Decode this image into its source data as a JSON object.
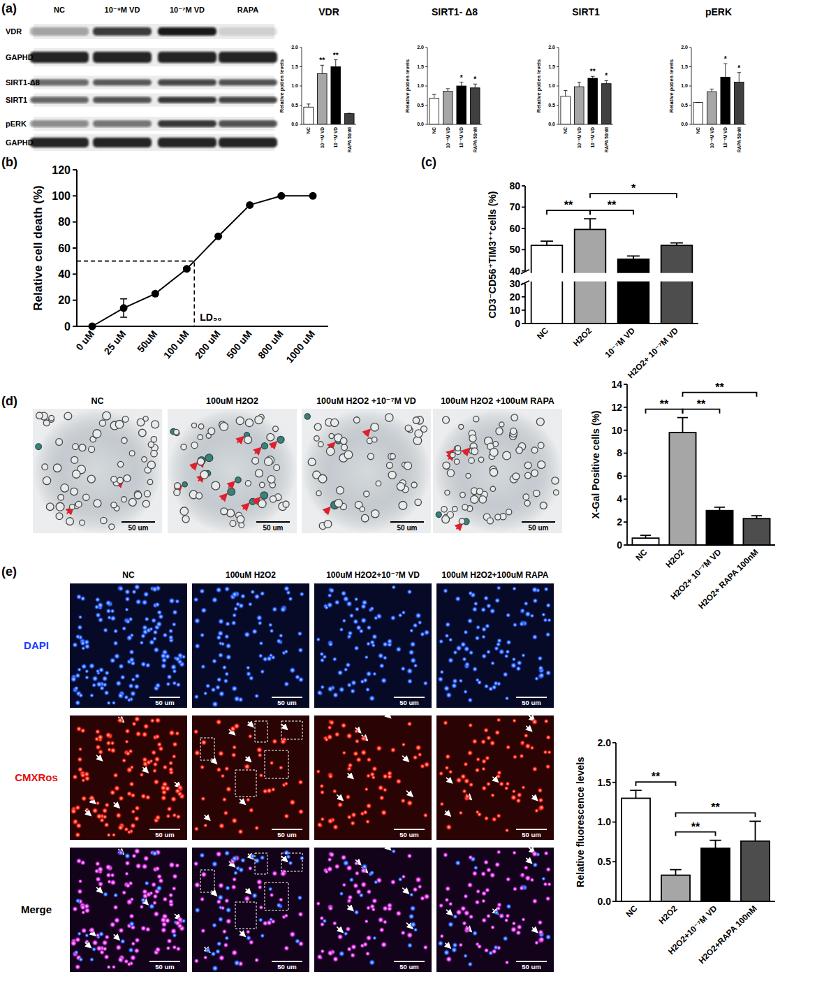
{
  "panel_labels": [
    "(a)",
    "(b)",
    "(c)",
    "(d)",
    "(e)"
  ],
  "blot": {
    "lanes": [
      "NC",
      "10⁻⁹M VD",
      "10⁻⁷M VD",
      "RAPA"
    ],
    "rows": [
      "VDR",
      "GAPHD",
      "SIRT1-Δ8",
      "SIRT1",
      "pERK",
      "GAPHD"
    ]
  },
  "micrographs_d": {
    "titles": [
      "NC",
      "100uM H2O2",
      "100uM H2O2 +10⁻⁷M VD",
      "100uM H2O2 +100uM RAPA"
    ],
    "scale_bar": "50 um"
  },
  "micrographs_e": {
    "titles": [
      "NC",
      "100uM H2O2",
      "100uM H2O2+10⁻⁷M VD",
      "100uM H2O2+100uM RAPA"
    ],
    "rows": [
      "DAPI",
      "CMXRos",
      "Merge"
    ],
    "scale_bar": "50 um"
  },
  "chart_data": [
    {
      "type": "bar",
      "title": "VDR",
      "y_label": "Relative potien levels",
      "categories": [
        "NC",
        "10⁻⁹M VD",
        "10⁻⁷M VD",
        "RAPA 50nM"
      ],
      "values": [
        0.45,
        1.32,
        1.5,
        0.28
      ],
      "errors": [
        0.08,
        0.22,
        0.18,
        0.01
      ],
      "colors": [
        "#ffffff",
        "#a6a6a6",
        "#000000",
        "#404040"
      ],
      "ylim": [
        0,
        2
      ],
      "yticks": [
        {
          "value": 0,
          "label": "0.0"
        },
        0.5,
        {
          "value": 1,
          "label": "1.0"
        },
        1.5,
        {
          "value": 2,
          "label": "2.0"
        }
      ],
      "stars": [
        null,
        "**",
        "**",
        null
      ]
    },
    {
      "type": "bar",
      "title": "SIRT1- Δ8",
      "y_label": "Relative potien levels",
      "categories": [
        "NC",
        "10⁻⁹M VD",
        "10⁻⁷M VD",
        "RAPA 50nM"
      ],
      "values": [
        0.68,
        0.86,
        1.0,
        0.95
      ],
      "errors": [
        0.1,
        0.07,
        0.1,
        0.1
      ],
      "colors": [
        "#ffffff",
        "#a6a6a6",
        "#000000",
        "#404040"
      ],
      "ylim": [
        0,
        2
      ],
      "yticks": [
        {
          "value": 0,
          "label": "0.0"
        },
        0.5,
        {
          "value": 1,
          "label": "1.0"
        },
        1.5,
        {
          "value": 2,
          "label": "2.0"
        }
      ],
      "stars": [
        null,
        null,
        "*",
        "*"
      ]
    },
    {
      "type": "bar",
      "title": "SIRT1",
      "y_label": "Relative potien levels",
      "categories": [
        "NC",
        "10⁻⁹M VD",
        "10⁻⁷M VD",
        "RAPA 50nM"
      ],
      "values": [
        0.73,
        0.98,
        1.2,
        1.06
      ],
      "errors": [
        0.15,
        0.12,
        0.05,
        0.08
      ],
      "colors": [
        "#ffffff",
        "#a6a6a6",
        "#000000",
        "#404040"
      ],
      "ylim": [
        0,
        2
      ],
      "yticks": [
        {
          "value": 0,
          "label": "0.0"
        },
        0.5,
        {
          "value": 1,
          "label": "1.0"
        },
        1.5,
        {
          "value": 2,
          "label": "2.0"
        }
      ],
      "stars": [
        null,
        null,
        "**",
        "*"
      ]
    },
    {
      "type": "bar",
      "title": "pERK",
      "y_label": "Relative potien levels",
      "categories": [
        "NC",
        "10⁻⁹M VD",
        "10⁻⁷M VD",
        "RAPA 50nM"
      ],
      "values": [
        0.57,
        0.85,
        1.23,
        1.1
      ],
      "errors": [
        0.0,
        0.07,
        0.35,
        0.25
      ],
      "colors": [
        "#ffffff",
        "#a6a6a6",
        "#000000",
        "#404040"
      ],
      "ylim": [
        0,
        2
      ],
      "yticks": [
        {
          "value": 0,
          "label": "0.0"
        },
        0.5,
        {
          "value": 1,
          "label": "1.0"
        },
        1.5,
        {
          "value": 2,
          "label": "2.0"
        }
      ],
      "stars": [
        null,
        null,
        "*",
        "*"
      ]
    },
    {
      "type": "line",
      "y_label": "Relative cell death (%)",
      "categories": [
        "0 uM",
        "25 uM",
        "50uM",
        "100 uM",
        "200 uM",
        "500 uM",
        "800 uM",
        "1000 uM"
      ],
      "values": [
        0,
        14,
        25,
        44,
        69,
        93,
        100,
        100
      ],
      "errors": [
        0,
        7,
        1,
        1,
        0,
        0,
        0,
        0
      ],
      "color": "#000000",
      "marker": "circle",
      "ylim": [
        0,
        120
      ],
      "yticks": [
        0,
        20,
        40,
        60,
        80,
        100,
        120
      ],
      "annotations": [
        {
          "text": "LD₅₀",
          "y": 50
        }
      ]
    },
    {
      "type": "bar",
      "y_label": "CD3⁻CD56⁺TIM3⁺⁺cells (%)",
      "categories": [
        "NC",
        "H2O2",
        "10⁻⁷M VD",
        "H2O2+ 10⁻⁷M VD"
      ],
      "values": [
        52,
        59.5,
        45.5,
        52
      ],
      "errors": [
        2,
        5,
        1.5,
        1.2
      ],
      "colors": [
        "#ffffff",
        "#a6a6a6",
        "#000000",
        "#4d4d4d"
      ],
      "ylim": [
        0,
        80
      ],
      "yticks": [
        0,
        10,
        20,
        30,
        40,
        50,
        60,
        70,
        80
      ],
      "axis_break": [
        30,
        40
      ],
      "significance": [
        {
          "pair": [
            0,
            1
          ],
          "label": "**"
        },
        {
          "pair": [
            1,
            2
          ],
          "label": "**"
        },
        {
          "pair": [
            1,
            3
          ],
          "label": "*"
        }
      ]
    },
    {
      "type": "bar",
      "y_label": "X-Gal Positive cells (%)",
      "categories": [
        "NC",
        "H2O2",
        "H2O2+ 10⁻⁷M VD",
        "H2O2+ RAPA 100nM"
      ],
      "values": [
        0.6,
        9.8,
        3.0,
        2.3
      ],
      "errors": [
        0.25,
        1.3,
        0.3,
        0.25
      ],
      "colors": [
        "#ffffff",
        "#a6a6a6",
        "#000000",
        "#4d4d4d"
      ],
      "ylim": [
        0,
        14
      ],
      "yticks": [
        0,
        2,
        4,
        6,
        8,
        10,
        12,
        14
      ],
      "significance": [
        {
          "pair": [
            0,
            1
          ],
          "label": "**"
        },
        {
          "pair": [
            1,
            2
          ],
          "label": "**"
        },
        {
          "pair": [
            1,
            3
          ],
          "label": "**"
        }
      ]
    },
    {
      "type": "bar",
      "y_label": "Relative fluorescence levels",
      "categories": [
        "NC",
        "H2O2",
        "H2O2+10⁻⁷M VD",
        "H2O2+RAPA 100nM"
      ],
      "values": [
        1.3,
        0.33,
        0.67,
        0.76
      ],
      "errors": [
        0.1,
        0.07,
        0.1,
        0.25
      ],
      "colors": [
        "#ffffff",
        "#a6a6a6",
        "#000000",
        "#4d4d4d"
      ],
      "ylim": [
        0,
        2
      ],
      "yticks": [
        {
          "value": 0,
          "label": "0.0"
        },
        0.5,
        {
          "value": 1,
          "label": "1.0"
        },
        1.5,
        {
          "value": 2,
          "label": "2.0"
        }
      ],
      "significance": [
        {
          "pair": [
            0,
            1
          ],
          "label": "**"
        },
        {
          "pair": [
            1,
            2
          ],
          "label": "**"
        },
        {
          "pair": [
            1,
            3
          ],
          "label": "**"
        }
      ]
    }
  ]
}
